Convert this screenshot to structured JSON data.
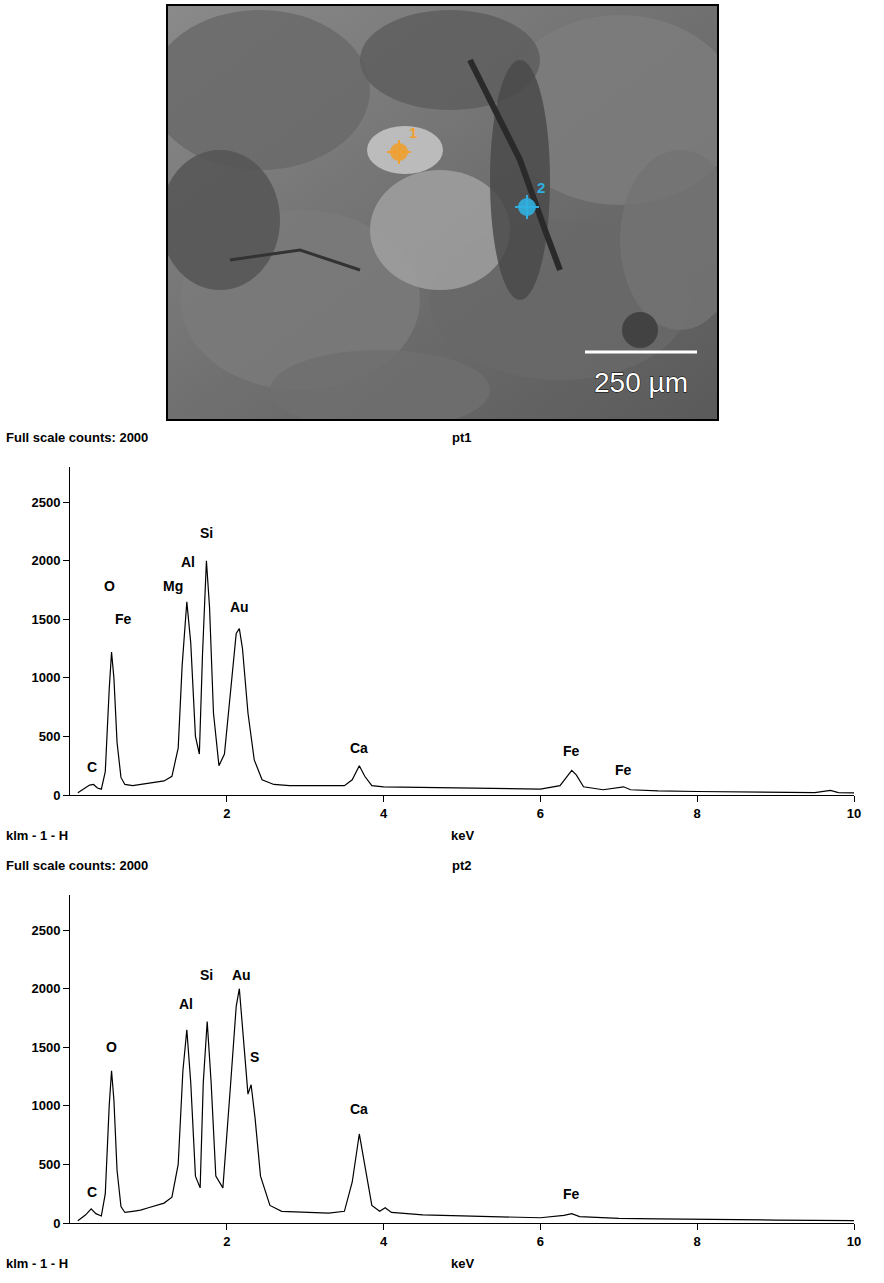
{
  "image": {
    "scale_bar": "250 µm",
    "points": [
      {
        "label": "1",
        "color": "#f0a030"
      },
      {
        "label": "2",
        "color": "#30b0e0"
      }
    ]
  },
  "chart_data": [
    {
      "type": "line",
      "title": "pt1",
      "header": "Full scale counts: 2000",
      "footer": "klm - 1 - H",
      "x_label": "keV",
      "color": "#000000",
      "grid": false,
      "xlim": [
        0,
        10
      ],
      "xticks": [
        2,
        4,
        6,
        8,
        10
      ],
      "ylim": [
        0,
        2800
      ],
      "yticks": [
        0,
        500,
        1000,
        1500,
        2000,
        2500
      ],
      "x": [
        0.1,
        0.15,
        0.2,
        0.25,
        0.3,
        0.35,
        0.4,
        0.45,
        0.5,
        0.53,
        0.56,
        0.6,
        0.65,
        0.7,
        0.8,
        0.9,
        1.0,
        1.1,
        1.2,
        1.3,
        1.38,
        1.43,
        1.49,
        1.54,
        1.6,
        1.65,
        1.69,
        1.74,
        1.78,
        1.83,
        1.9,
        1.97,
        2.05,
        2.12,
        2.16,
        2.2,
        2.27,
        2.35,
        2.45,
        2.6,
        2.8,
        3.0,
        3.3,
        3.5,
        3.6,
        3.69,
        3.76,
        3.85,
        4.0,
        4.5,
        5.0,
        5.5,
        6.0,
        6.25,
        6.35,
        6.4,
        6.46,
        6.55,
        6.8,
        7.0,
        7.06,
        7.15,
        7.5,
        8.0,
        8.5,
        9.0,
        9.5,
        9.7,
        9.8,
        10.0
      ],
      "values": [
        20,
        40,
        60,
        85,
        90,
        60,
        50,
        200,
        900,
        1220,
        1000,
        450,
        150,
        90,
        80,
        90,
        95,
        110,
        120,
        160,
        400,
        1100,
        1650,
        1300,
        500,
        350,
        1200,
        2000,
        1600,
        700,
        250,
        350,
        900,
        1380,
        1420,
        1250,
        700,
        300,
        130,
        90,
        80,
        80,
        75,
        80,
        130,
        250,
        160,
        80,
        70,
        65,
        60,
        55,
        50,
        80,
        170,
        210,
        170,
        70,
        45,
        60,
        70,
        45,
        35,
        30,
        25,
        22,
        20,
        40,
        20,
        18
      ],
      "annotations": [
        {
          "text": "C",
          "x": 0.28,
          "y": 150
        },
        {
          "text": "O",
          "x": 0.5,
          "y": 1700
        },
        {
          "text": "Fe",
          "x": 0.68,
          "y": 1420
        },
        {
          "text": "Mg",
          "x": 1.32,
          "y": 1700
        },
        {
          "text": "Al",
          "x": 1.5,
          "y": 1900
        },
        {
          "text": "Si",
          "x": 1.74,
          "y": 2150
        },
        {
          "text": "Au",
          "x": 2.16,
          "y": 1520
        },
        {
          "text": "Ca",
          "x": 3.69,
          "y": 320
        },
        {
          "text": "Fe",
          "x": 6.4,
          "y": 290
        },
        {
          "text": "Fe",
          "x": 7.06,
          "y": 130
        }
      ]
    },
    {
      "type": "line",
      "title": "pt2",
      "header": "Full scale counts: 2000",
      "footer": "klm - 1 - H",
      "x_label": "keV",
      "color": "#000000",
      "grid": false,
      "xlim": [
        0,
        10
      ],
      "xticks": [
        2,
        4,
        6,
        8,
        10
      ],
      "ylim": [
        0,
        2800
      ],
      "yticks": [
        0,
        500,
        1000,
        1500,
        2000,
        2500
      ],
      "x": [
        0.1,
        0.2,
        0.27,
        0.33,
        0.4,
        0.45,
        0.5,
        0.53,
        0.56,
        0.6,
        0.65,
        0.7,
        0.8,
        0.9,
        1.0,
        1.1,
        1.2,
        1.3,
        1.38,
        1.44,
        1.49,
        1.54,
        1.6,
        1.66,
        1.7,
        1.75,
        1.8,
        1.86,
        1.95,
        2.05,
        2.12,
        2.16,
        2.21,
        2.27,
        2.31,
        2.36,
        2.43,
        2.55,
        2.7,
        3.0,
        3.3,
        3.5,
        3.6,
        3.69,
        3.76,
        3.85,
        3.95,
        4.02,
        4.1,
        4.5,
        5.0,
        5.5,
        6.0,
        6.3,
        6.4,
        6.5,
        7.0,
        7.5,
        8.0,
        9.0,
        10.0
      ],
      "values": [
        20,
        70,
        120,
        80,
        60,
        250,
        1000,
        1300,
        1050,
        450,
        140,
        90,
        100,
        110,
        130,
        150,
        170,
        220,
        500,
        1300,
        1650,
        1200,
        400,
        300,
        1200,
        1720,
        1200,
        400,
        300,
        1200,
        1850,
        2000,
        1600,
        1100,
        1180,
        900,
        400,
        150,
        100,
        90,
        85,
        100,
        350,
        760,
        500,
        150,
        100,
        130,
        90,
        70,
        60,
        50,
        45,
        65,
        80,
        55,
        40,
        35,
        30,
        25,
        20
      ],
      "annotations": [
        {
          "text": "C",
          "x": 0.28,
          "y": 180
        },
        {
          "text": "O",
          "x": 0.53,
          "y": 1420
        },
        {
          "text": "Al",
          "x": 1.48,
          "y": 1780
        },
        {
          "text": "Si",
          "x": 1.74,
          "y": 2030
        },
        {
          "text": "Au",
          "x": 2.19,
          "y": 2030
        },
        {
          "text": "S",
          "x": 2.35,
          "y": 1330
        },
        {
          "text": "Ca",
          "x": 3.69,
          "y": 890
        },
        {
          "text": "Fe",
          "x": 6.4,
          "y": 160
        }
      ]
    }
  ]
}
